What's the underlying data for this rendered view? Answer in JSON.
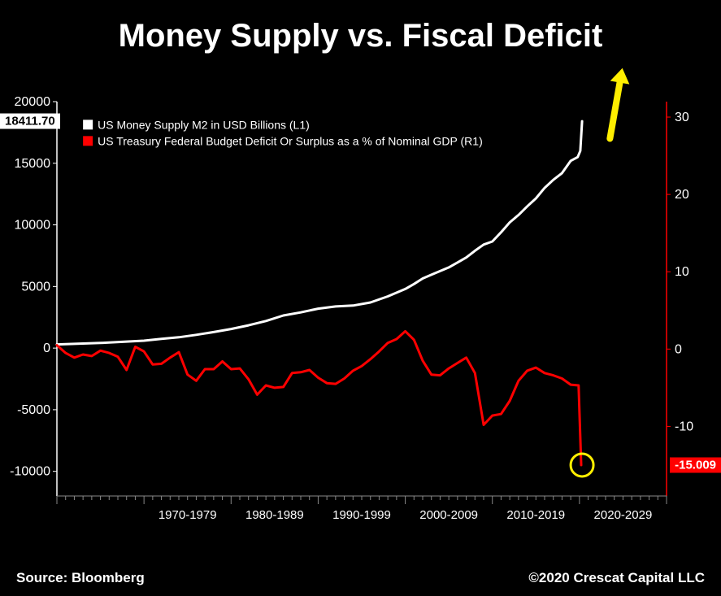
{
  "title": "Money Supply vs. Fiscal Deficit",
  "footer": {
    "source": "Source: Bloomberg",
    "copyright": "©2020 Crescat Capital LLC"
  },
  "chart": {
    "type": "line-dual-axis",
    "background": "#000000",
    "grid_color": "#888888",
    "axis_color": "#ffffff",
    "x": {
      "domain": [
        1960,
        2030
      ],
      "ticks_minor_start": 1960,
      "ticks_minor_step": 1,
      "decade_labels": [
        "1970-1979",
        "1980-1989",
        "1990-1999",
        "2000-2009",
        "2010-2019",
        "2020-2029"
      ],
      "decade_label_centers": [
        1975,
        1985,
        1995,
        2005,
        2015,
        2025
      ]
    },
    "left_axis": {
      "color": "#ffffff",
      "domain": [
        -12000,
        20000
      ],
      "ticks": [
        -10000,
        -5000,
        0,
        5000,
        10000,
        15000,
        20000
      ],
      "marker_value": 18411.7,
      "marker_label": "18411.70"
    },
    "right_axis": {
      "color": "#ff0000",
      "domain": [
        -19,
        32
      ],
      "ticks": [
        -10,
        0,
        10,
        20,
        30
      ],
      "marker_value": -15.009,
      "marker_label": "-15.009"
    },
    "legend": {
      "x": 1963,
      "y_top_left_value": 17800,
      "items": [
        {
          "label": "US Money Supply M2 in USD Billions (L1)",
          "color": "#ffffff"
        },
        {
          "label": "US Treasury Federal Budget Deficit Or Surplus as a % of Nominal GDP (R1)",
          "color": "#ff0000"
        }
      ]
    },
    "annotations": {
      "arrow": {
        "x": 2023.5,
        "y_left_value": 17000,
        "color": "#ffee00",
        "length": 70,
        "angle_deg": -80
      },
      "circle": {
        "x": 2020.3,
        "y_right_value": -15.0,
        "radius": 14,
        "stroke": "#ffee00",
        "stroke_width": 3
      }
    },
    "series": [
      {
        "name": "m2",
        "axis": "left",
        "color": "#ffffff",
        "line_width": 3,
        "points": [
          [
            1960,
            300
          ],
          [
            1965,
            420
          ],
          [
            1970,
            600
          ],
          [
            1972,
            750
          ],
          [
            1974,
            880
          ],
          [
            1976,
            1080
          ],
          [
            1978,
            1300
          ],
          [
            1980,
            1550
          ],
          [
            1982,
            1850
          ],
          [
            1984,
            2200
          ],
          [
            1986,
            2650
          ],
          [
            1988,
            2900
          ],
          [
            1990,
            3200
          ],
          [
            1992,
            3380
          ],
          [
            1994,
            3450
          ],
          [
            1996,
            3700
          ],
          [
            1998,
            4200
          ],
          [
            2000,
            4800
          ],
          [
            2001,
            5200
          ],
          [
            2002,
            5650
          ],
          [
            2003,
            5950
          ],
          [
            2004,
            6250
          ],
          [
            2005,
            6550
          ],
          [
            2006,
            6950
          ],
          [
            2007,
            7350
          ],
          [
            2008,
            7900
          ],
          [
            2009,
            8400
          ],
          [
            2010,
            8650
          ],
          [
            2011,
            9400
          ],
          [
            2012,
            10200
          ],
          [
            2013,
            10800
          ],
          [
            2014,
            11500
          ],
          [
            2015,
            12150
          ],
          [
            2016,
            13000
          ],
          [
            2017,
            13650
          ],
          [
            2018,
            14200
          ],
          [
            2019,
            15200
          ],
          [
            2019.8,
            15500
          ],
          [
            2020.1,
            16000
          ],
          [
            2020.3,
            18411
          ]
        ]
      },
      {
        "name": "deficit",
        "axis": "right",
        "color": "#ff0000",
        "line_width": 3,
        "points": [
          [
            1960,
            0.5
          ],
          [
            1961,
            -0.5
          ],
          [
            1962,
            -1.1
          ],
          [
            1963,
            -0.7
          ],
          [
            1964,
            -0.9
          ],
          [
            1965,
            -0.2
          ],
          [
            1966,
            -0.5
          ],
          [
            1967,
            -1.0
          ],
          [
            1968,
            -2.7
          ],
          [
            1969,
            0.3
          ],
          [
            1970,
            -0.3
          ],
          [
            1971,
            -2.0
          ],
          [
            1972,
            -1.9
          ],
          [
            1973,
            -1.1
          ],
          [
            1974,
            -0.4
          ],
          [
            1975,
            -3.3
          ],
          [
            1976,
            -4.1
          ],
          [
            1977,
            -2.6
          ],
          [
            1978,
            -2.6
          ],
          [
            1979,
            -1.6
          ],
          [
            1980,
            -2.6
          ],
          [
            1981,
            -2.5
          ],
          [
            1982,
            -3.9
          ],
          [
            1983,
            -5.9
          ],
          [
            1984,
            -4.7
          ],
          [
            1985,
            -5.0
          ],
          [
            1986,
            -4.9
          ],
          [
            1987,
            -3.1
          ],
          [
            1988,
            -3.0
          ],
          [
            1989,
            -2.7
          ],
          [
            1990,
            -3.7
          ],
          [
            1991,
            -4.4
          ],
          [
            1992,
            -4.5
          ],
          [
            1993,
            -3.8
          ],
          [
            1994,
            -2.8
          ],
          [
            1995,
            -2.2
          ],
          [
            1996,
            -1.3
          ],
          [
            1997,
            -0.3
          ],
          [
            1998,
            0.8
          ],
          [
            1999,
            1.3
          ],
          [
            2000,
            2.3
          ],
          [
            2001,
            1.2
          ],
          [
            2002,
            -1.5
          ],
          [
            2003,
            -3.3
          ],
          [
            2004,
            -3.4
          ],
          [
            2005,
            -2.5
          ],
          [
            2006,
            -1.8
          ],
          [
            2007,
            -1.1
          ],
          [
            2008,
            -3.1
          ],
          [
            2009,
            -9.8
          ],
          [
            2010,
            -8.6
          ],
          [
            2011,
            -8.4
          ],
          [
            2012,
            -6.7
          ],
          [
            2013,
            -4.1
          ],
          [
            2014,
            -2.8
          ],
          [
            2015,
            -2.4
          ],
          [
            2016,
            -3.1
          ],
          [
            2017,
            -3.4
          ],
          [
            2018,
            -3.8
          ],
          [
            2019,
            -4.6
          ],
          [
            2019.9,
            -4.7
          ],
          [
            2020.2,
            -15.0
          ]
        ]
      }
    ]
  }
}
